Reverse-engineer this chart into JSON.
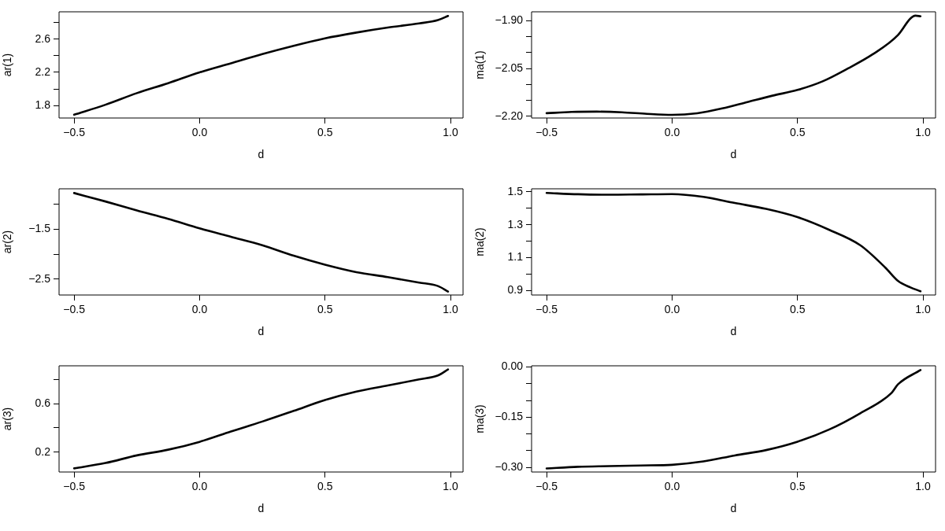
{
  "chart_data": [
    {
      "type": "line",
      "xlabel": "d",
      "ylabel": "ar(1)",
      "xlim": [
        -0.56,
        1.05
      ],
      "ylim": [
        1.65,
        2.93
      ],
      "xticks": [
        {
          "value": -0.5,
          "label": "−0.5"
        },
        {
          "value": 0,
          "label": "0.0"
        },
        {
          "value": 0.5,
          "label": "0.5"
        },
        {
          "value": 1,
          "label": "1.0"
        }
      ],
      "yticks": [
        {
          "value": 1.8,
          "label": "1.8"
        },
        {
          "value": 2.0,
          "label": null
        },
        {
          "value": 2.2,
          "label": "2.2"
        },
        {
          "value": 2.4,
          "label": null
        },
        {
          "value": 2.6,
          "label": "2.6"
        },
        {
          "value": 2.8,
          "label": null
        }
      ],
      "x": [
        -0.5,
        -0.375,
        -0.25,
        -0.125,
        0,
        0.125,
        0.25,
        0.375,
        0.5,
        0.625,
        0.75,
        0.875,
        0.95,
        0.99
      ],
      "series": [
        {
          "color": "#000000",
          "values": [
            1.69,
            1.81,
            1.95,
            2.07,
            2.2,
            2.31,
            2.42,
            2.52,
            2.61,
            2.68,
            2.74,
            2.79,
            2.83,
            2.88
          ]
        }
      ]
    },
    {
      "type": "line",
      "xlabel": "d",
      "ylabel": "ma(1)",
      "xlim": [
        -0.56,
        1.05
      ],
      "ylim": [
        -2.205,
        -1.872
      ],
      "xticks": [
        {
          "value": -0.5,
          "label": "−0.5"
        },
        {
          "value": 0,
          "label": "0.0"
        },
        {
          "value": 0.5,
          "label": "0.5"
        },
        {
          "value": 1,
          "label": "1.0"
        }
      ],
      "yticks": [
        {
          "value": -2.2,
          "label": "−2.20"
        },
        {
          "value": -2.15,
          "label": null
        },
        {
          "value": -2.1,
          "label": null
        },
        {
          "value": -2.05,
          "label": "−2.05"
        },
        {
          "value": -2.0,
          "label": null
        },
        {
          "value": -1.95,
          "label": null
        },
        {
          "value": -1.9,
          "label": "−1.90"
        }
      ],
      "x": [
        -0.5,
        -0.4,
        -0.3,
        -0.2,
        -0.1,
        0,
        0.1,
        0.2,
        0.3,
        0.4,
        0.5,
        0.6,
        0.7,
        0.8,
        0.9,
        0.95,
        0.97,
        0.99
      ],
      "series": [
        {
          "color": "#000000",
          "values": [
            -2.19,
            -2.186,
            -2.185,
            -2.187,
            -2.192,
            -2.195,
            -2.19,
            -2.175,
            -2.155,
            -2.135,
            -2.117,
            -2.09,
            -2.05,
            -2.005,
            -1.945,
            -1.893,
            -1.884,
            -1.886
          ]
        }
      ]
    },
    {
      "type": "line",
      "xlabel": "d",
      "ylabel": "ar(2)",
      "xlim": [
        -0.56,
        1.05
      ],
      "ylim": [
        -2.82,
        -0.685
      ],
      "xticks": [
        {
          "value": -0.5,
          "label": "−0.5"
        },
        {
          "value": 0,
          "label": "0.0"
        },
        {
          "value": 0.5,
          "label": "0.5"
        },
        {
          "value": 1,
          "label": "1.0"
        }
      ],
      "yticks": [
        {
          "value": -2.5,
          "label": "−2.5"
        },
        {
          "value": -2.0,
          "label": null
        },
        {
          "value": -1.5,
          "label": "−1.5"
        },
        {
          "value": -1.0,
          "label": null
        }
      ],
      "x": [
        -0.5,
        -0.375,
        -0.25,
        -0.125,
        0,
        0.125,
        0.25,
        0.375,
        0.5,
        0.625,
        0.75,
        0.875,
        0.95,
        0.99
      ],
      "series": [
        {
          "color": "#000000",
          "values": [
            -0.77,
            -0.94,
            -1.12,
            -1.29,
            -1.48,
            -1.65,
            -1.82,
            -2.03,
            -2.21,
            -2.36,
            -2.46,
            -2.57,
            -2.64,
            -2.75
          ]
        }
      ]
    },
    {
      "type": "line",
      "xlabel": "d",
      "ylabel": "ma(2)",
      "xlim": [
        -0.56,
        1.05
      ],
      "ylim": [
        0.874,
        1.518
      ],
      "xticks": [
        {
          "value": -0.5,
          "label": "−0.5"
        },
        {
          "value": 0,
          "label": "0.0"
        },
        {
          "value": 0.5,
          "label": "0.5"
        },
        {
          "value": 1,
          "label": "1.0"
        }
      ],
      "yticks": [
        {
          "value": 0.9,
          "label": "0.9"
        },
        {
          "value": 1.0,
          "label": null
        },
        {
          "value": 1.1,
          "label": "1.1"
        },
        {
          "value": 1.2,
          "label": null
        },
        {
          "value": 1.3,
          "label": "1.3"
        },
        {
          "value": 1.4,
          "label": null
        },
        {
          "value": 1.5,
          "label": "1.5"
        }
      ],
      "x": [
        -0.5,
        -0.375,
        -0.25,
        -0.125,
        0,
        0.125,
        0.25,
        0.375,
        0.5,
        0.625,
        0.75,
        0.85,
        0.9,
        0.95,
        0.99
      ],
      "series": [
        {
          "color": "#000000",
          "values": [
            1.493,
            1.485,
            1.482,
            1.484,
            1.486,
            1.469,
            1.432,
            1.396,
            1.346,
            1.27,
            1.176,
            1.04,
            0.96,
            0.92,
            0.897
          ]
        }
      ]
    },
    {
      "type": "line",
      "xlabel": "d",
      "ylabel": "ar(3)",
      "xlim": [
        -0.56,
        1.05
      ],
      "ylim": [
        0.036,
        0.912
      ],
      "xticks": [
        {
          "value": -0.5,
          "label": "−0.5"
        },
        {
          "value": 0,
          "label": "0.0"
        },
        {
          "value": 0.5,
          "label": "0.5"
        },
        {
          "value": 1,
          "label": "1.0"
        }
      ],
      "yticks": [
        {
          "value": 0.2,
          "label": "0.2"
        },
        {
          "value": 0.4,
          "label": null
        },
        {
          "value": 0.6,
          "label": "0.6"
        },
        {
          "value": 0.8,
          "label": null
        }
      ],
      "x": [
        -0.5,
        -0.375,
        -0.25,
        -0.125,
        0,
        0.125,
        0.25,
        0.375,
        0.5,
        0.625,
        0.75,
        0.875,
        0.95,
        0.99
      ],
      "series": [
        {
          "color": "#000000",
          "values": [
            0.066,
            0.11,
            0.173,
            0.22,
            0.285,
            0.37,
            0.452,
            0.54,
            0.63,
            0.7,
            0.75,
            0.8,
            0.832,
            0.882
          ]
        }
      ]
    },
    {
      "type": "line",
      "xlabel": "d",
      "ylabel": "ma(3)",
      "xlim": [
        -0.56,
        1.05
      ],
      "ylim": [
        -0.3135,
        0.0036
      ],
      "xticks": [
        {
          "value": -0.5,
          "label": "−0.5"
        },
        {
          "value": 0,
          "label": "0.0"
        },
        {
          "value": 0.5,
          "label": "0.5"
        },
        {
          "value": 1,
          "label": "1.0"
        }
      ],
      "yticks": [
        {
          "value": -0.3,
          "label": "−0.30"
        },
        {
          "value": -0.25,
          "label": null
        },
        {
          "value": -0.2,
          "label": null
        },
        {
          "value": -0.15,
          "label": "−0.15"
        },
        {
          "value": -0.1,
          "label": null
        },
        {
          "value": -0.05,
          "label": null
        },
        {
          "value": 0,
          "label": "0.00"
        }
      ],
      "x": [
        -0.5,
        -0.375,
        -0.25,
        -0.125,
        0,
        0.125,
        0.25,
        0.375,
        0.5,
        0.625,
        0.75,
        0.875,
        0.9,
        0.99
      ],
      "series": [
        {
          "color": "#000000",
          "values": [
            -0.303,
            -0.298,
            -0.296,
            -0.294,
            -0.292,
            -0.282,
            -0.264,
            -0.248,
            -0.223,
            -0.187,
            -0.138,
            -0.077,
            -0.052,
            -0.009
          ]
        }
      ]
    }
  ]
}
